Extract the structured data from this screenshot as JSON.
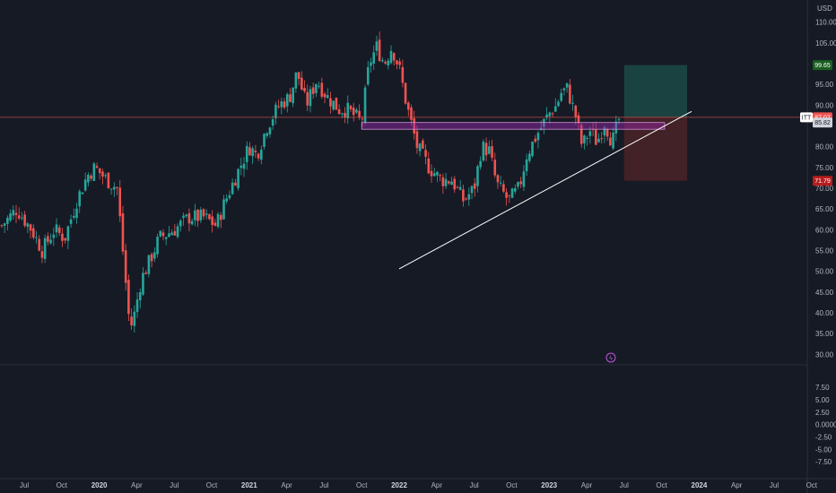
{
  "colors": {
    "background": "#161a25",
    "up": "#26a69a",
    "down": "#ef5350",
    "axis_text": "#b2b5be",
    "trendline": "#ffffff",
    "zone": "#9c27b0",
    "target_zone": "#1b4a47",
    "stop_zone": "#4a2328",
    "price_line": "#ef5350"
  },
  "chart_data": {
    "type": "candlestick",
    "symbol": "ITT",
    "currency_label": "USD",
    "y_ticks": [
      "110.00",
      "105.00",
      "95.00",
      "90.00",
      "80.00",
      "75.00",
      "70.00",
      "65.00",
      "60.00",
      "55.00",
      "50.00",
      "45.00",
      "40.00",
      "35.00",
      "30.00"
    ],
    "y_tick_values": [
      110,
      105,
      95,
      90,
      80,
      75,
      70,
      65,
      60,
      55,
      50,
      45,
      40,
      35,
      30
    ],
    "ylim": [
      29,
      111
    ],
    "x_ticks": [
      {
        "label": "Jul",
        "t": 2019.5
      },
      {
        "label": "Oct",
        "t": 2019.75
      },
      {
        "label": "2020",
        "t": 2020.0,
        "strong": true
      },
      {
        "label": "Apr",
        "t": 2020.25
      },
      {
        "label": "Jul",
        "t": 2020.5
      },
      {
        "label": "Oct",
        "t": 2020.75
      },
      {
        "label": "2021",
        "t": 2021.0,
        "strong": true
      },
      {
        "label": "Apr",
        "t": 2021.25
      },
      {
        "label": "Jul",
        "t": 2021.5
      },
      {
        "label": "Oct",
        "t": 2021.75
      },
      {
        "label": "2022",
        "t": 2022.0,
        "strong": true
      },
      {
        "label": "Apr",
        "t": 2022.25
      },
      {
        "label": "Jul",
        "t": 2022.5
      },
      {
        "label": "Oct",
        "t": 2022.75
      },
      {
        "label": "2023",
        "t": 2023.0,
        "strong": true
      },
      {
        "label": "Apr",
        "t": 2023.25
      },
      {
        "label": "Jul",
        "t": 2023.5
      },
      {
        "label": "Oct",
        "t": 2023.75
      },
      {
        "label": "2024",
        "t": 2024.0,
        "strong": true
      },
      {
        "label": "Apr",
        "t": 2024.25
      },
      {
        "label": "Jul",
        "t": 2024.5
      },
      {
        "label": "Oct",
        "t": 2024.75
      }
    ],
    "price_path": [
      [
        2019.35,
        61
      ],
      [
        2019.45,
        65
      ],
      [
        2019.55,
        60
      ],
      [
        2019.62,
        55
      ],
      [
        2019.7,
        60
      ],
      [
        2019.77,
        58
      ],
      [
        2019.85,
        67
      ],
      [
        2019.92,
        73
      ],
      [
        2019.97,
        75
      ],
      [
        2020.05,
        72
      ],
      [
        2020.12,
        70
      ],
      [
        2020.15,
        58
      ],
      [
        2020.2,
        38
      ],
      [
        2020.22,
        37
      ],
      [
        2020.28,
        48
      ],
      [
        2020.33,
        52
      ],
      [
        2020.4,
        58
      ],
      [
        2020.5,
        60
      ],
      [
        2020.6,
        63
      ],
      [
        2020.7,
        63
      ],
      [
        2020.78,
        61
      ],
      [
        2020.83,
        66
      ],
      [
        2020.9,
        72
      ],
      [
        2021.0,
        80
      ],
      [
        2021.05,
        78
      ],
      [
        2021.12,
        85
      ],
      [
        2021.2,
        90
      ],
      [
        2021.27,
        92
      ],
      [
        2021.32,
        98
      ],
      [
        2021.38,
        90
      ],
      [
        2021.45,
        96
      ],
      [
        2021.52,
        92
      ],
      [
        2021.6,
        89
      ],
      [
        2021.65,
        89
      ],
      [
        2021.75,
        86
      ],
      [
        2021.8,
        100
      ],
      [
        2021.85,
        104
      ],
      [
        2021.9,
        100
      ],
      [
        2021.95,
        104
      ],
      [
        2022.0,
        99
      ],
      [
        2022.05,
        90
      ],
      [
        2022.12,
        80
      ],
      [
        2022.2,
        75
      ],
      [
        2022.28,
        72
      ],
      [
        2022.35,
        72
      ],
      [
        2022.43,
        67
      ],
      [
        2022.5,
        70
      ],
      [
        2022.55,
        80
      ],
      [
        2022.6,
        79
      ],
      [
        2022.65,
        71
      ],
      [
        2022.73,
        67
      ],
      [
        2022.8,
        70
      ],
      [
        2022.85,
        78
      ],
      [
        2022.92,
        83
      ],
      [
        2023.0,
        88
      ],
      [
        2023.05,
        90
      ],
      [
        2023.08,
        93
      ],
      [
        2023.12,
        94
      ],
      [
        2023.18,
        87
      ],
      [
        2023.22,
        80
      ],
      [
        2023.27,
        84
      ],
      [
        2023.32,
        81
      ],
      [
        2023.37,
        86
      ],
      [
        2023.42,
        81
      ],
      [
        2023.47,
        87
      ]
    ],
    "last_price": 87.07,
    "last_price_label": "87.07",
    "zone_top": 85.82,
    "zone_top_label": "85.82",
    "zone_start": 2021.75,
    "zone_end": 2023.77,
    "target_price": 99.65,
    "target_label": "99.65",
    "stop_price": 71.79,
    "stop_label": "71.79",
    "position_start": 2023.5,
    "position_end": 2023.92,
    "trendline": [
      [
        2022.0,
        50.6
      ],
      [
        2023.95,
        88.5
      ]
    ],
    "indicator_ticks": [
      "7.50",
      "5.00",
      "2.50",
      "0.0000",
      "-2.50",
      "-5.00",
      "-7.50"
    ],
    "indicator_tick_values": [
      7.5,
      5,
      2.5,
      0,
      -2.5,
      -5,
      -7.5
    ],
    "indicator_ylim": [
      -8.2,
      8.8
    ],
    "grid": false
  }
}
